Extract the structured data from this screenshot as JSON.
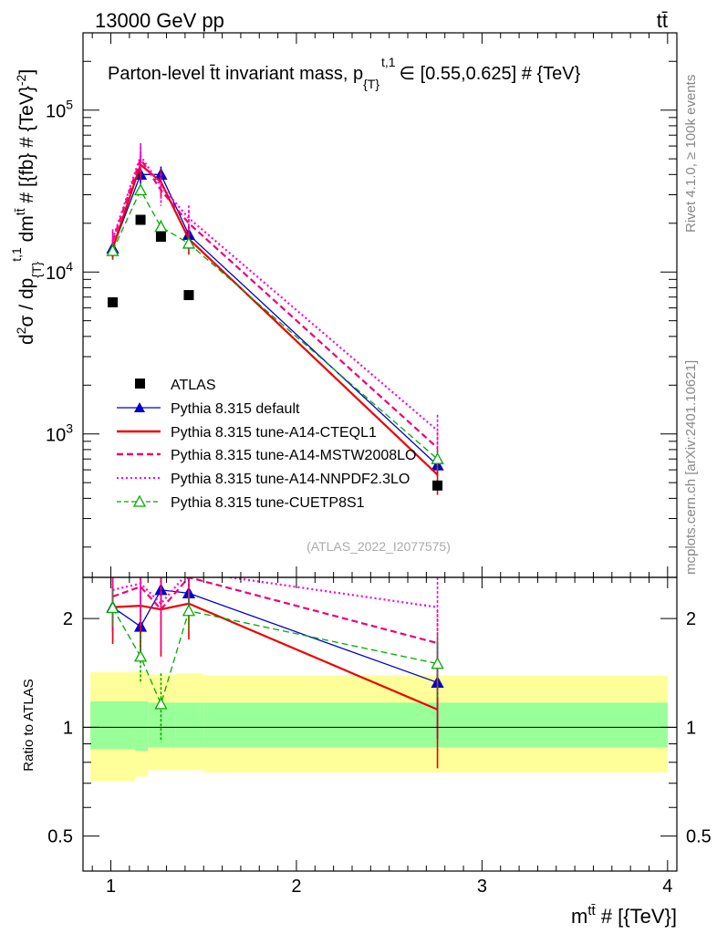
{
  "header": {
    "left": "13000 GeV pp",
    "right": "tt̄"
  },
  "side": {
    "rivet": "Rivet 4.1.0, ≥ 100k events",
    "mcplots": "mcplots.cern.ch [arXiv:2401.10621]"
  },
  "chart_data": {
    "type": "line",
    "title": "Parton-level t̄t invariant mass, p_{T}^{t,1} ∈ [0.55,0.625] # {TeV}",
    "title_main": "Parton-level t̄t invariant mass, p",
    "title_sub": "{T}",
    "title_sup": "t,1",
    "title_rest": "∈ [0.55,0.625] # {TeV}",
    "ylabel": "d²σ / dp_{T}^{t,1} dm^{tt̄} # [{fb} # {TeV}^{-2}]",
    "ylabel_parts": {
      "d": "d",
      "sup2": "2",
      "sigma": "σ / dp",
      "sub_T": "{T}",
      "sup_t1": "t,1",
      "dm": " dm",
      "sup_tt": "tt̄",
      "units": " # [{fb} # {TeV}",
      "sup_m2": "-2",
      "close": "]"
    },
    "xlabel": "m^{tt̄} # [{TeV}]",
    "xlabel_parts": {
      "m": "m",
      "sup": "tt̄",
      "rest": " # [{TeV}]"
    },
    "ratio_ylabel": "Ratio to ATLAS",
    "watermark": "(ATLAS_2022_I2077575)",
    "xlim": [
      0.85,
      4.05
    ],
    "ylim_main": [
      130,
      300000
    ],
    "ylim_ratio": [
      0.4,
      2.6
    ],
    "xticks": [
      1,
      2,
      3,
      4
    ],
    "xtick_labels": [
      "1",
      "2",
      "3",
      "4"
    ],
    "yticks_main": [
      1000,
      10000,
      100000
    ],
    "ytick_main_labels": [
      {
        "base": "10",
        "exp": "3"
      },
      {
        "base": "10",
        "exp": "4"
      },
      {
        "base": "10",
        "exp": "5"
      }
    ],
    "yticks_ratio": [
      0.5,
      1,
      2
    ],
    "ytick_ratio_labels": [
      "0.5",
      "1",
      "2"
    ],
    "data": {
      "name": "ATLAS",
      "x": [
        1.01,
        1.16,
        1.27,
        1.42,
        2.76
      ],
      "y": [
        6500,
        21000,
        16500,
        7200,
        480
      ]
    },
    "uncertainty_bands": [
      {
        "x0": 0.89,
        "x1": 1.13,
        "inner": [
          0.87,
          1.18
        ],
        "outer": [
          0.71,
          1.42
        ]
      },
      {
        "x0": 1.13,
        "x1": 1.2,
        "inner": [
          0.86,
          1.18
        ],
        "outer": [
          0.73,
          1.43
        ]
      },
      {
        "x0": 1.2,
        "x1": 1.35,
        "inner": [
          0.88,
          1.17
        ],
        "outer": [
          0.76,
          1.4
        ]
      },
      {
        "x0": 1.35,
        "x1": 1.5,
        "inner": [
          0.88,
          1.17
        ],
        "outer": [
          0.76,
          1.41
        ]
      },
      {
        "x0": 1.5,
        "x1": 4.0,
        "inner": [
          0.88,
          1.17
        ],
        "outer": [
          0.75,
          1.39
        ]
      }
    ],
    "series": [
      {
        "name": "Pythia 8.315 default",
        "color": "#0000cc",
        "style": "solid",
        "marker": "triangle-filled",
        "x": [
          1.01,
          1.16,
          1.27,
          1.42,
          2.76
        ],
        "y": [
          14000,
          40000,
          40000,
          17000,
          640
        ],
        "ratio": [
          2.15,
          1.9,
          2.4,
          2.35,
          1.33
        ],
        "err_main": [
          0.12,
          0.12,
          0.12,
          0.12,
          0.15
        ],
        "err_ratio": [
          0.3,
          0.3,
          0.3,
          0.3,
          0.4
        ]
      },
      {
        "name": "Pythia 8.315 tune-A14-CTEQL1",
        "color": "#ee0000",
        "style": "solid",
        "marker": "none",
        "x": [
          1.01,
          1.16,
          1.27,
          1.42,
          2.76
        ],
        "y": [
          14000,
          46000,
          36000,
          16000,
          560
        ],
        "ratio": [
          2.15,
          2.17,
          2.12,
          2.2,
          1.12
        ],
        "err_main": [
          0.15,
          0.2,
          0.2,
          0.2,
          0.25
        ],
        "err_ratio": [
          0.45,
          0.55,
          0.55,
          0.45,
          0.35
        ]
      },
      {
        "name": "Pythia 8.315 tune-A14-MSTW2008LO",
        "color": "#ee0077",
        "style": "dashed",
        "marker": "none",
        "x": [
          1.01,
          1.16,
          1.27,
          1.42,
          2.76
        ],
        "y": [
          15500,
          50000,
          32000,
          20000,
          820
        ],
        "ratio": [
          2.3,
          2.45,
          2.12,
          2.6,
          1.71
        ],
        "err_main": [
          0.15,
          0.2,
          0.2,
          0.2,
          0.25
        ],
        "err_ratio": [
          0.5,
          0.55,
          0.55,
          0.5,
          0.4
        ]
      },
      {
        "name": "Pythia 8.315 tune-A14-NNPDF2.3LO",
        "color": "#ff00cc",
        "style": "dotted",
        "marker": "none",
        "x": [
          1.01,
          1.16,
          1.27,
          1.42,
          2.76
        ],
        "y": [
          16000,
          52000,
          34000,
          21500,
          1050
        ],
        "ratio": [
          2.4,
          2.5,
          2.2,
          2.7,
          2.15
        ],
        "err_main": [
          0.15,
          0.2,
          0.2,
          0.2,
          0.25
        ],
        "err_ratio": [
          0.5,
          0.55,
          0.55,
          0.5,
          0.45
        ]
      },
      {
        "name": "Pythia 8.315 tune-CUETP8S1",
        "color": "#00aa00",
        "style": "dashed",
        "marker": "triangle-open",
        "x": [
          1.01,
          1.16,
          1.27,
          1.42,
          2.76
        ],
        "y": [
          13500,
          32000,
          19000,
          15000,
          700
        ],
        "ratio": [
          2.14,
          1.57,
          1.16,
          2.1,
          1.5
        ],
        "err_main": [
          0.1,
          0.1,
          0.1,
          0.1,
          0.15
        ],
        "err_ratio": [
          0.25,
          0.25,
          0.25,
          0.25,
          0.3
        ]
      }
    ]
  }
}
